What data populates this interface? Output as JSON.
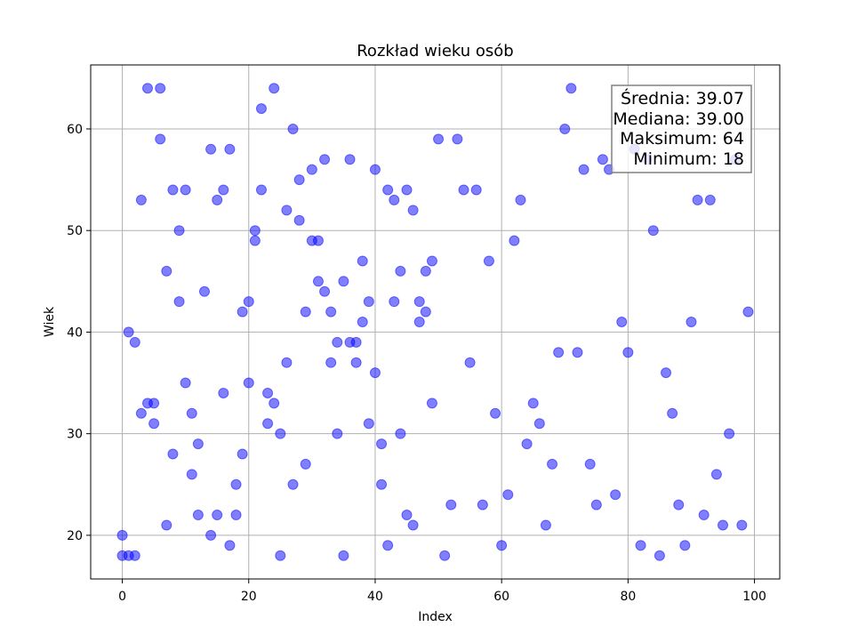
{
  "chart_data": {
    "type": "scatter",
    "title": "Rozkład wieku osób",
    "xlabel": "Index",
    "ylabel": "Wiek",
    "xlim": [
      -5,
      104
    ],
    "ylim": [
      15.7,
      66.3
    ],
    "xticks": [
      0,
      20,
      40,
      60,
      80,
      100
    ],
    "yticks": [
      20,
      30,
      40,
      50,
      60
    ],
    "grid": true,
    "marker_color": "#0000ff",
    "marker_alpha": 0.5,
    "stats_box_position": "top-right",
    "stats": [
      "Średnia: 39.07",
      "Mediana: 39.00",
      "Maksimum: 64",
      "Minimum: 18"
    ],
    "points": [
      [
        0,
        20
      ],
      [
        0,
        18
      ],
      [
        1,
        40
      ],
      [
        1,
        18
      ],
      [
        2,
        39
      ],
      [
        2,
        18
      ],
      [
        3,
        53
      ],
      [
        3,
        32
      ],
      [
        4,
        64
      ],
      [
        4,
        33
      ],
      [
        5,
        33
      ],
      [
        5,
        31
      ],
      [
        6,
        64
      ],
      [
        6,
        59
      ],
      [
        7,
        46
      ],
      [
        7,
        21
      ],
      [
        8,
        54
      ],
      [
        8,
        28
      ],
      [
        9,
        50
      ],
      [
        9,
        43
      ],
      [
        10,
        54
      ],
      [
        10,
        35
      ],
      [
        11,
        32
      ],
      [
        11,
        26
      ],
      [
        12,
        29
      ],
      [
        12,
        22
      ],
      [
        13,
        44
      ],
      [
        14,
        58
      ],
      [
        14,
        20
      ],
      [
        15,
        53
      ],
      [
        15,
        22
      ],
      [
        16,
        54
      ],
      [
        16,
        34
      ],
      [
        17,
        58
      ],
      [
        17,
        19
      ],
      [
        18,
        25
      ],
      [
        18,
        22
      ],
      [
        19,
        42
      ],
      [
        19,
        28
      ],
      [
        20,
        43
      ],
      [
        20,
        35
      ],
      [
        21,
        50
      ],
      [
        21,
        49
      ],
      [
        22,
        62
      ],
      [
        22,
        54
      ],
      [
        23,
        34
      ],
      [
        23,
        31
      ],
      [
        24,
        64
      ],
      [
        24,
        33
      ],
      [
        25,
        30
      ],
      [
        25,
        18
      ],
      [
        26,
        52
      ],
      [
        26,
        37
      ],
      [
        27,
        60
      ],
      [
        27,
        25
      ],
      [
        28,
        55
      ],
      [
        28,
        51
      ],
      [
        29,
        42
      ],
      [
        29,
        27
      ],
      [
        30,
        56
      ],
      [
        30,
        49
      ],
      [
        31,
        49
      ],
      [
        31,
        45
      ],
      [
        32,
        57
      ],
      [
        32,
        44
      ],
      [
        33,
        42
      ],
      [
        33,
        37
      ],
      [
        34,
        39
      ],
      [
        34,
        30
      ],
      [
        35,
        45
      ],
      [
        35,
        18
      ],
      [
        36,
        57
      ],
      [
        36,
        39
      ],
      [
        37,
        39
      ],
      [
        37,
        37
      ],
      [
        38,
        47
      ],
      [
        38,
        41
      ],
      [
        39,
        43
      ],
      [
        39,
        31
      ],
      [
        40,
        56
      ],
      [
        40,
        36
      ],
      [
        41,
        29
      ],
      [
        41,
        25
      ],
      [
        42,
        54
      ],
      [
        42,
        19
      ],
      [
        43,
        53
      ],
      [
        43,
        43
      ],
      [
        44,
        46
      ],
      [
        44,
        30
      ],
      [
        45,
        54
      ],
      [
        45,
        22
      ],
      [
        46,
        52
      ],
      [
        46,
        21
      ],
      [
        47,
        43
      ],
      [
        47,
        41
      ],
      [
        48,
        46
      ],
      [
        48,
        42
      ],
      [
        49,
        47
      ],
      [
        49,
        33
      ],
      [
        50,
        59
      ],
      [
        51,
        18
      ],
      [
        52,
        23
      ],
      [
        53,
        59
      ],
      [
        54,
        54
      ],
      [
        55,
        37
      ],
      [
        56,
        54
      ],
      [
        57,
        23
      ],
      [
        58,
        47
      ],
      [
        59,
        32
      ],
      [
        60,
        19
      ],
      [
        61,
        24
      ],
      [
        62,
        49
      ],
      [
        63,
        53
      ],
      [
        64,
        29
      ],
      [
        65,
        33
      ],
      [
        66,
        31
      ],
      [
        67,
        21
      ],
      [
        68,
        27
      ],
      [
        69,
        38
      ],
      [
        70,
        60
      ],
      [
        71,
        64
      ],
      [
        72,
        38
      ],
      [
        73,
        56
      ],
      [
        74,
        27
      ],
      [
        75,
        23
      ],
      [
        76,
        57
      ],
      [
        77,
        56
      ],
      [
        78,
        24
      ],
      [
        79,
        41
      ],
      [
        80,
        38
      ],
      [
        81,
        58
      ],
      [
        82,
        19
      ],
      [
        83,
        57
      ],
      [
        84,
        50
      ],
      [
        85,
        18
      ],
      [
        86,
        36
      ],
      [
        87,
        32
      ],
      [
        88,
        23
      ],
      [
        89,
        19
      ],
      [
        90,
        41
      ],
      [
        91,
        53
      ],
      [
        92,
        22
      ],
      [
        93,
        53
      ],
      [
        94,
        26
      ],
      [
        95,
        21
      ],
      [
        96,
        30
      ],
      [
        97,
        57
      ],
      [
        98,
        21
      ],
      [
        99,
        42
      ]
    ]
  }
}
